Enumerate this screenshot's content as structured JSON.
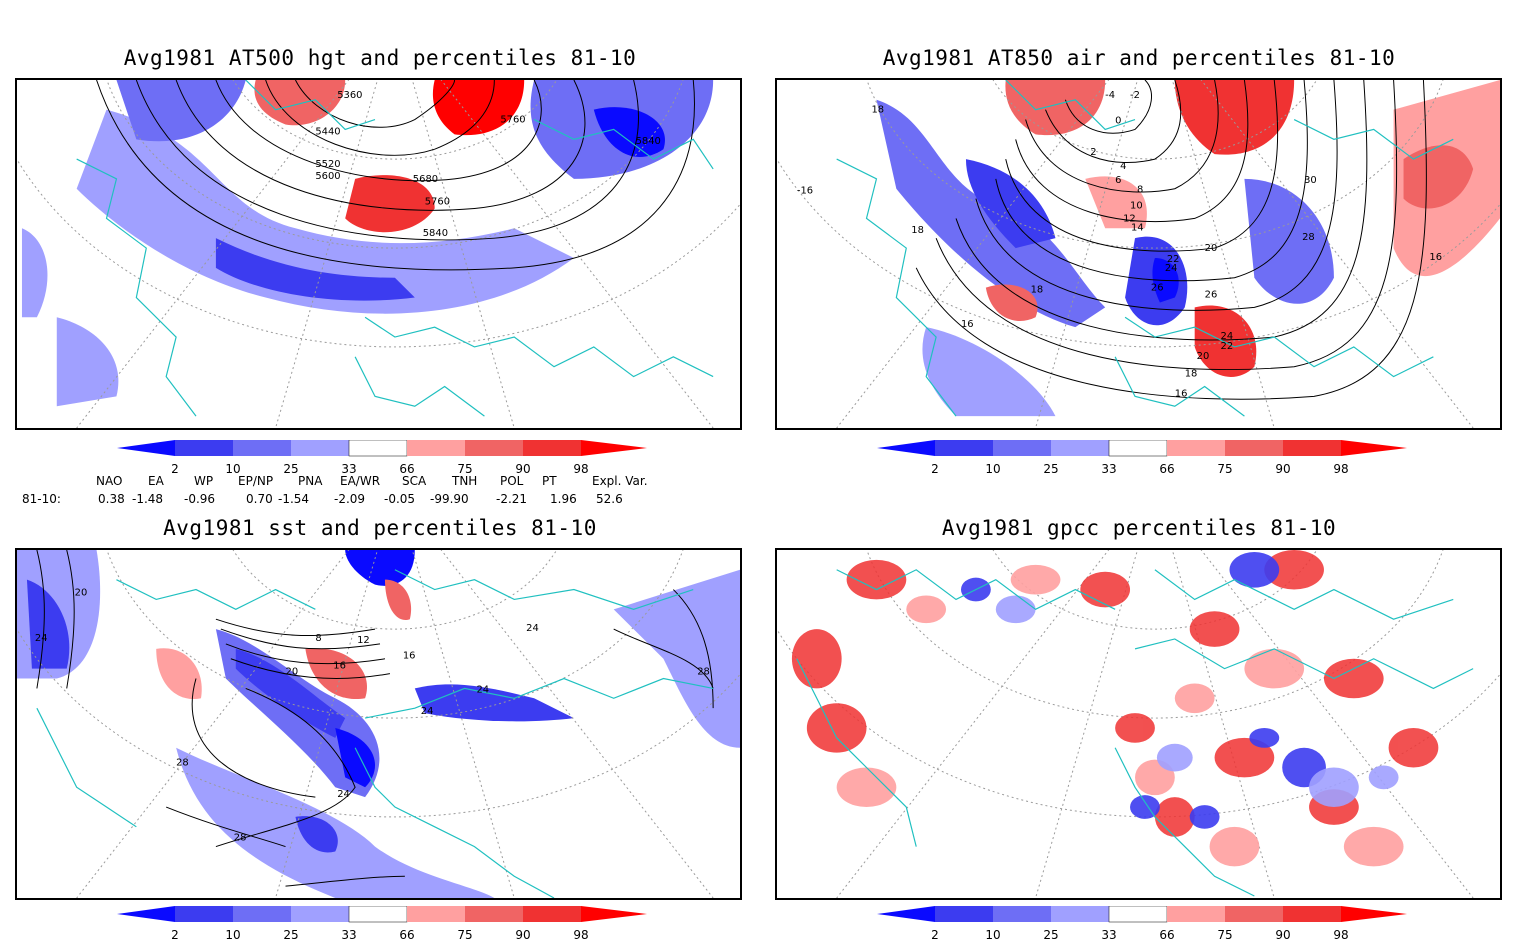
{
  "panels": [
    {
      "title": "Avg1981 AT500 hgt and percentiles 81-10",
      "contour_labels": [
        "5360",
        "5440",
        "5520",
        "5600",
        "5680",
        "5760",
        "5760",
        "5840",
        "5840"
      ]
    },
    {
      "title": "Avg1981 AT850 air and percentiles 81-10",
      "contour_labels": [
        "-4",
        "-2",
        "0",
        "2",
        "4",
        "6",
        "8",
        "10",
        "12",
        "14",
        "16",
        "16",
        "16",
        "18",
        "18",
        "18",
        "18",
        "20",
        "20",
        "22",
        "22",
        "24",
        "24",
        "26",
        "26",
        "28",
        "30",
        "-16"
      ]
    },
    {
      "title": "Avg1981 sst and percentiles 81-10",
      "contour_labels": [
        "20",
        "24",
        "8",
        "12",
        "16",
        "20",
        "16",
        "24",
        "24",
        "24",
        "24",
        "28",
        "28",
        "28"
      ]
    },
    {
      "title": "Avg1981 gpcc percentiles 81-10",
      "contour_labels": []
    }
  ],
  "colorbar": {
    "labels": [
      "2",
      "10",
      "25",
      "33",
      "66",
      "75",
      "90",
      "98"
    ],
    "colors": [
      "#0a0aff",
      "#3c3cf0",
      "#6e6ef5",
      "#a0a0ff",
      "#ffffff",
      "#ffa0a0",
      "#f06464",
      "#f03232",
      "#ff0000"
    ]
  },
  "indices": {
    "headers": [
      "NAO",
      "EA",
      "WP",
      "EP/NP",
      "PNA",
      "EA/WR",
      "SCA",
      "TNH",
      "POL",
      "PT",
      "Expl. Var."
    ],
    "row_label": "81-10:",
    "values": [
      "0.38",
      "-1.48",
      "-0.96",
      "0.70",
      "-1.54",
      "-2.09",
      "-0.05",
      "-99.90",
      "-2.21",
      "1.96",
      "52.6"
    ]
  },
  "colors": {
    "coast": "#20c0c0",
    "contour": "#000000",
    "grid": "#9a9a9a"
  }
}
